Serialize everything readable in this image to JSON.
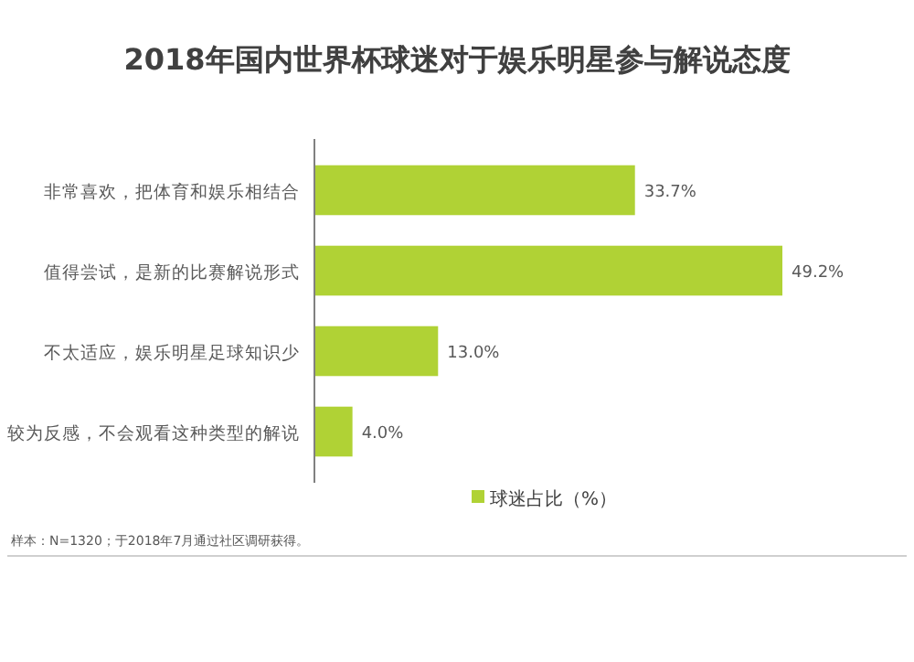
{
  "chart_data": {
    "type": "bar",
    "orientation": "horizontal",
    "title": "2018年国内世界杯球迷对于娱乐明星参与解说态度",
    "categories": [
      "非常喜欢，把体育和娱乐相结合",
      "值得尝试，是新的比赛解说形式",
      "不太适应，娱乐明星足球知识少",
      "较为反感，不会观看这种类型的解说"
    ],
    "series": [
      {
        "name": "球迷占比（%）",
        "color": "#b0d235",
        "values": [
          33.7,
          49.2,
          13.0,
          4.0
        ],
        "value_labels": [
          "33.7%",
          "49.2%",
          "13.0%",
          "4.0%"
        ]
      }
    ],
    "legend": "bottom",
    "annotations": [
      "样本：N=1320；于2018年7月通过社区调研获得。"
    ]
  }
}
